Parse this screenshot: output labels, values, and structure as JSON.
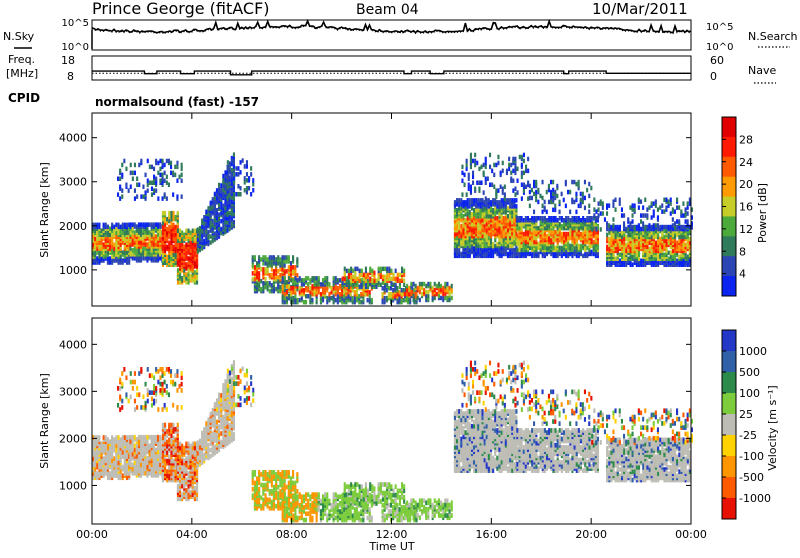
{
  "header": {
    "station": "Prince George (fitACF)",
    "beam": "Beam 04",
    "date": "10/Mar/2011",
    "cpid_label": "CPID",
    "cpid_value": "normalsound (fast) -157"
  },
  "chart_data": [
    {
      "type": "line",
      "name": "noise-panel",
      "left_label": "N.Sky",
      "right_label": "N.Search",
      "left_ticks": [
        "10^5",
        "10^0"
      ],
      "right_ticks": [
        "10^5",
        "10^0"
      ]
    },
    {
      "type": "line",
      "name": "frequency-panel",
      "left_label_lines": [
        "Freq.",
        "[MHz]"
      ],
      "right_label": "Nave",
      "left_ticks": [
        "18",
        "8"
      ],
      "right_ticks": [
        "60",
        "0"
      ],
      "freq_steps": [
        [
          0.0,
          11.6
        ],
        [
          2.1,
          10.4
        ],
        [
          2.6,
          11.6
        ],
        [
          3.55,
          10.4
        ],
        [
          4.1,
          11.6
        ],
        [
          5.55,
          9.9
        ],
        [
          6.4,
          11.6
        ],
        [
          12.5,
          10.4
        ],
        [
          12.8,
          11.6
        ],
        [
          13.55,
          10.4
        ],
        [
          14.1,
          11.6
        ],
        [
          15.55,
          11.6
        ],
        [
          18.9,
          10.4
        ],
        [
          19.1,
          11.6
        ],
        [
          20.6,
          10.6
        ],
        [
          24.0,
          10.6
        ]
      ],
      "nave_level": 10.6
    },
    {
      "type": "heatmap",
      "name": "power",
      "ylabel": "Slant Range [km]",
      "yticks": [
        1000,
        2000,
        3000,
        4000
      ],
      "ylim": [
        180,
        4560
      ],
      "colorbar_label": "Power [dB]",
      "colorbar_ticks": [
        "4",
        "8",
        "12",
        "16",
        "20",
        "24",
        "28"
      ]
    },
    {
      "type": "heatmap",
      "name": "velocity",
      "ylabel": "Slant Range [km]",
      "yticks": [
        1000,
        2000,
        3000,
        4000
      ],
      "ylim": [
        180,
        4560
      ],
      "xlabel": "Time UT",
      "xticks": [
        "00:00",
        "04:00",
        "08:00",
        "12:00",
        "16:00",
        "20:00",
        "00:00"
      ],
      "colorbar_label": "Velocity [m s⁻¹]",
      "colorbar_ticks": [
        "1000",
        "500",
        "100",
        "25",
        "-25",
        "-100",
        "-500",
        "-1000"
      ]
    }
  ],
  "colors": {
    "power_scale": [
      "#0b24f0",
      "#2c45b4",
      "#2f7a5a",
      "#4caa3c",
      "#c6cc28",
      "#ff9a00",
      "#ff5a00",
      "#ff1a00",
      "#e00000"
    ],
    "velocity_scale": [
      "#2438c8",
      "#3060a8",
      "#2c8a4a",
      "#7ccc3c",
      "#bdbdb5",
      "#ffd200",
      "#ff9600",
      "#ff5a00",
      "#e81000"
    ]
  },
  "echo_regions": [
    {
      "t0": 0.0,
      "t1": 1.5,
      "r0": 1150,
      "r1": 2050,
      "mode": "core"
    },
    {
      "t0": 1.5,
      "t1": 2.8,
      "r0": 1200,
      "r1": 2050,
      "mode": "core"
    },
    {
      "t0": 2.8,
      "t1": 3.4,
      "r0": 1100,
      "r1": 2300,
      "mode": "hot"
    },
    {
      "t0": 3.4,
      "t1": 4.2,
      "r0": 700,
      "r1": 1900,
      "mode": "hot"
    },
    {
      "t0": 4.2,
      "t1": 5.7,
      "r0": 1400,
      "r1": 3200,
      "mode": "diag"
    },
    {
      "t0": 1.0,
      "t1": 3.6,
      "r0": 2600,
      "r1": 3500,
      "mode": "sparse"
    },
    {
      "t0": 5.4,
      "t1": 6.5,
      "r0": 2700,
      "r1": 3500,
      "mode": "sparse"
    },
    {
      "t0": 6.4,
      "t1": 8.2,
      "r0": 500,
      "r1": 1300,
      "mode": "low"
    },
    {
      "t0": 7.6,
      "t1": 11.2,
      "r0": 250,
      "r1": 800,
      "mode": "low"
    },
    {
      "t0": 10.0,
      "t1": 12.5,
      "r0": 600,
      "r1": 1050,
      "mode": "low"
    },
    {
      "t0": 11.6,
      "t1": 13.0,
      "r0": 250,
      "r1": 600,
      "mode": "low"
    },
    {
      "t0": 12.5,
      "t1": 14.4,
      "r0": 300,
      "r1": 700,
      "mode": "low"
    },
    {
      "t0": 14.5,
      "t1": 17.0,
      "r0": 1300,
      "r1": 2600,
      "mode": "core"
    },
    {
      "t0": 17.0,
      "t1": 20.3,
      "r0": 1300,
      "r1": 2200,
      "mode": "core"
    },
    {
      "t0": 20.6,
      "t1": 24.0,
      "r0": 1100,
      "r1": 2000,
      "mode": "core"
    },
    {
      "t0": 14.8,
      "t1": 17.5,
      "r0": 2600,
      "r1": 3600,
      "mode": "sparse"
    },
    {
      "t0": 17.5,
      "t1": 20.0,
      "r0": 2300,
      "r1": 3000,
      "mode": "sparse"
    },
    {
      "t0": 20.0,
      "t1": 24.0,
      "r0": 1900,
      "r1": 2600,
      "mode": "sparse"
    }
  ]
}
